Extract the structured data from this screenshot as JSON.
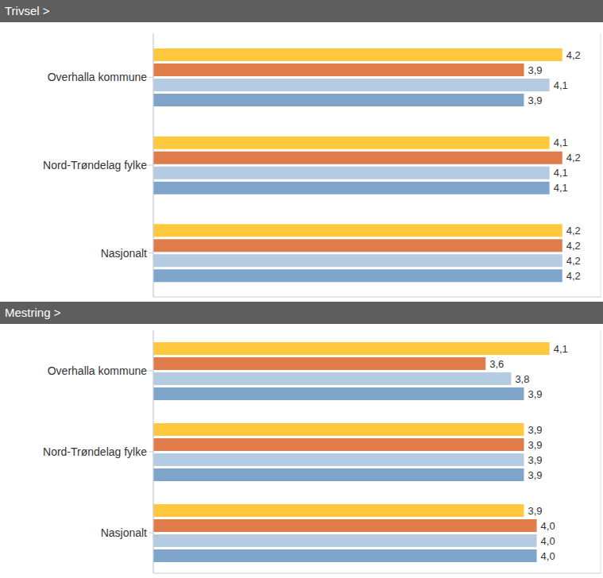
{
  "chart_data": [
    {
      "type": "bar",
      "title": "Trivsel >",
      "orientation": "horizontal",
      "categories": [
        "Overhalla kommune",
        "Nord-Trøndelag fylke",
        "Nasjonalt"
      ],
      "series": [
        {
          "color": "#ffc83d",
          "values": [
            4.2,
            4.1,
            4.2
          ],
          "value_labels": [
            "4,2",
            "4,1",
            "4,2"
          ]
        },
        {
          "color": "#e07b4a",
          "values": [
            3.9,
            4.2,
            4.2
          ],
          "value_labels": [
            "3,9",
            "4,2",
            "4,2"
          ]
        },
        {
          "color": "#b5cbe2",
          "values": [
            4.1,
            4.1,
            4.2
          ],
          "value_labels": [
            "4,1",
            "4,1",
            "4,2"
          ]
        },
        {
          "color": "#7fa5cb",
          "values": [
            3.9,
            4.1,
            4.2
          ],
          "value_labels": [
            "3,9",
            "4,1",
            "4,2"
          ]
        }
      ],
      "xlim": [
        1,
        4.5
      ],
      "xticks": [
        1,
        2,
        3,
        4
      ],
      "grid": true,
      "data_labels": true,
      "tick_labels": "y"
    },
    {
      "type": "bar",
      "title": "Mestring >",
      "orientation": "horizontal",
      "categories": [
        "Overhalla kommune",
        "Nord-Trøndelag fylke",
        "Nasjonalt"
      ],
      "series": [
        {
          "color": "#ffc83d",
          "values": [
            4.1,
            3.9,
            3.9
          ],
          "value_labels": [
            "4,1",
            "3,9",
            "3,9"
          ]
        },
        {
          "color": "#e07b4a",
          "values": [
            3.6,
            3.9,
            4.0
          ],
          "value_labels": [
            "3,6",
            "3,9",
            "4,0"
          ]
        },
        {
          "color": "#b5cbe2",
          "values": [
            3.8,
            3.9,
            4.0
          ],
          "value_labels": [
            "3,8",
            "3,9",
            "4,0"
          ]
        },
        {
          "color": "#7fa5cb",
          "values": [
            3.9,
            3.9,
            4.0
          ],
          "value_labels": [
            "3,9",
            "3,9",
            "4,0"
          ]
        }
      ],
      "xlim": [
        1,
        4.5
      ],
      "xticks": [
        1,
        2,
        3,
        4
      ],
      "grid": true,
      "data_labels": true,
      "tick_labels": "y"
    }
  ]
}
